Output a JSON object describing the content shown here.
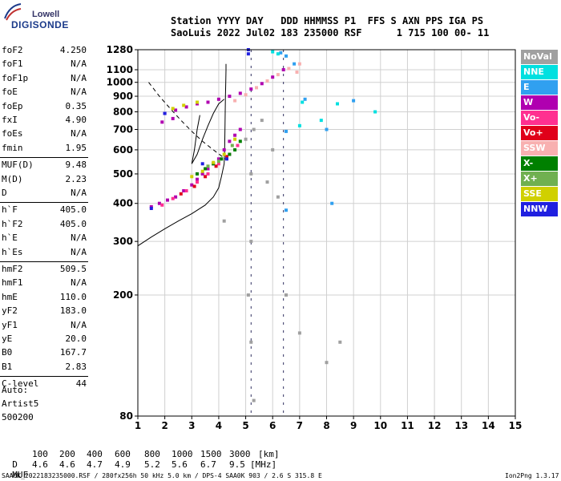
{
  "logo": {
    "top": "Lowell",
    "bottom": "DIGISONDE"
  },
  "header": {
    "line1": "Station YYYY DAY   DDD HHMMSS P1  FFS S AXN PPS IGA PS",
    "line2": "SaoLuis 2022 Jul02 183 235000 RSF      1 715 100 00- 11"
  },
  "params": [
    {
      "label": "foF2",
      "value": "4.250"
    },
    {
      "label": "foF1",
      "value": "N/A"
    },
    {
      "label": "foF1p",
      "value": "N/A"
    },
    {
      "label": "foE",
      "value": "N/A"
    },
    {
      "label": "foEp",
      "value": "0.35"
    },
    {
      "label": "fxI",
      "value": "4.90"
    },
    {
      "label": "foEs",
      "value": "N/A"
    },
    {
      "label": "fmin",
      "value": "1.95"
    },
    {
      "label": "MUF(D)",
      "value": "9.48"
    },
    {
      "label": "M(D)",
      "value": "2.23"
    },
    {
      "label": "D",
      "value": "N/A"
    },
    {
      "label": "h`F",
      "value": "405.0"
    },
    {
      "label": "h`F2",
      "value": "405.0"
    },
    {
      "label": "h`E",
      "value": "N/A"
    },
    {
      "label": "h`Es",
      "value": "N/A"
    },
    {
      "label": "hmF2",
      "value": "509.5"
    },
    {
      "label": "hmF1",
      "value": "N/A"
    },
    {
      "label": "hmE",
      "value": "110.0"
    },
    {
      "label": "yF2",
      "value": "183.0"
    },
    {
      "label": "yF1",
      "value": "N/A"
    },
    {
      "label": "yE",
      "value": "20.0"
    },
    {
      "label": "B0",
      "value": "167.7"
    },
    {
      "label": "B1",
      "value": "2.83"
    },
    {
      "label": "C-level",
      "value": "44"
    }
  ],
  "auto": {
    "label": "Auto:",
    "artist": "Artist5",
    "version": "500200"
  },
  "legend": [
    {
      "label": "NoVal",
      "color": "#a0a0a0"
    },
    {
      "label": "NNE",
      "color": "#00e0e0"
    },
    {
      "label": "E",
      "color": "#30a0f0"
    },
    {
      "label": "W",
      "color": "#b000b0"
    },
    {
      "label": "Vo-",
      "color": "#ff3090"
    },
    {
      "label": "Vo+",
      "color": "#e0001a"
    },
    {
      "label": "SSW",
      "color": "#f8b0b0"
    },
    {
      "label": "X-",
      "color": "#008000"
    },
    {
      "label": "X+",
      "color": "#70b050"
    },
    {
      "label": "SSE",
      "color": "#d0d000"
    },
    {
      "label": "NNW",
      "color": "#2020e0"
    }
  ],
  "muf_table": {
    "d_label": "D",
    "d_values": [
      "100",
      "200",
      "400",
      "600",
      "800",
      "1000",
      "1500",
      "3000"
    ],
    "d_unit": "[km]",
    "muf_label": "MUF",
    "muf_values": [
      "4.6",
      "4.6",
      "4.7",
      "4.9",
      "5.2",
      "5.6",
      "6.7",
      "9.5"
    ],
    "muf_unit": "[MHz]"
  },
  "footer": {
    "left": "SAA0K_2022183235000.RSF / 280fx256h 50 kHz 5.0 km / DPS-4 SAA0K 903 / 2.6 S 315.8 E",
    "right": "Ion2Png 1.3.17"
  },
  "chart_data": {
    "type": "scatter",
    "title": "",
    "xlabel": "",
    "ylabel": "",
    "xlim": [
      1,
      15
    ],
    "ylim": [
      80,
      1280
    ],
    "x_ticks": [
      1,
      2,
      3,
      4,
      5,
      6,
      7,
      8,
      9,
      10,
      11,
      12,
      13,
      14,
      15
    ],
    "y_ticks": [
      80,
      200,
      300,
      400,
      500,
      600,
      700,
      800,
      900,
      1000,
      1100,
      1280
    ],
    "grid": true,
    "legend_position": "right",
    "marked_frequencies": [
      5.2,
      6.4
    ],
    "series": [
      {
        "color": "#b000b0",
        "points": [
          [
            1.5,
            390
          ],
          [
            1.8,
            400
          ],
          [
            2.1,
            410
          ],
          [
            2.4,
            420
          ],
          [
            2.7,
            440
          ],
          [
            3.0,
            460
          ],
          [
            3.2,
            480
          ],
          [
            3.4,
            500
          ],
          [
            3.6,
            520
          ],
          [
            3.8,
            540
          ],
          [
            4.0,
            560
          ],
          [
            4.2,
            600
          ],
          [
            4.4,
            640
          ],
          [
            4.6,
            670
          ],
          [
            4.8,
            700
          ],
          [
            2.0,
            790
          ],
          [
            2.4,
            810
          ],
          [
            2.8,
            830
          ],
          [
            3.2,
            850
          ],
          [
            3.6,
            860
          ],
          [
            4.0,
            880
          ],
          [
            4.4,
            900
          ],
          [
            4.8,
            920
          ],
          [
            5.2,
            950
          ],
          [
            5.6,
            990
          ],
          [
            6.0,
            1040
          ],
          [
            6.4,
            1100
          ],
          [
            1.9,
            740
          ],
          [
            2.3,
            760
          ]
        ]
      },
      {
        "color": "#ff3090",
        "points": [
          [
            1.9,
            395
          ],
          [
            2.3,
            415
          ],
          [
            2.8,
            440
          ],
          [
            3.2,
            470
          ],
          [
            3.6,
            500
          ],
          [
            4.0,
            540
          ],
          [
            4.4,
            580
          ],
          [
            4.7,
            620
          ]
        ]
      },
      {
        "color": "#e0001a",
        "points": [
          [
            2.6,
            430
          ],
          [
            3.1,
            455
          ],
          [
            3.5,
            490
          ],
          [
            3.9,
            530
          ],
          [
            4.3,
            570
          ]
        ]
      },
      {
        "color": "#f8b0b0",
        "points": [
          [
            4.6,
            870
          ],
          [
            5.0,
            910
          ],
          [
            5.4,
            960
          ],
          [
            5.8,
            1010
          ],
          [
            6.2,
            1060
          ],
          [
            6.6,
            1110
          ],
          [
            7.0,
            1150
          ],
          [
            6.9,
            1080
          ]
        ]
      },
      {
        "color": "#008000",
        "points": [
          [
            3.2,
            500
          ],
          [
            3.5,
            520
          ],
          [
            3.8,
            540
          ],
          [
            4.1,
            560
          ],
          [
            4.4,
            580
          ],
          [
            4.6,
            600
          ],
          [
            4.8,
            640
          ]
        ]
      },
      {
        "color": "#70b050",
        "points": [
          [
            3.6,
            530
          ],
          [
            4.0,
            550
          ],
          [
            4.5,
            620
          ]
        ]
      },
      {
        "color": "#d0d000",
        "points": [
          [
            3.0,
            490
          ],
          [
            3.4,
            510
          ],
          [
            3.8,
            545
          ],
          [
            4.2,
            580
          ],
          [
            4.6,
            650
          ],
          [
            2.3,
            820
          ],
          [
            2.7,
            840
          ],
          [
            3.2,
            860
          ]
        ]
      },
      {
        "color": "#2020e0",
        "points": [
          [
            1.5,
            385
          ],
          [
            2.0,
            790
          ],
          [
            3.4,
            540
          ],
          [
            4.3,
            560
          ],
          [
            5.1,
            1280
          ],
          [
            5.1,
            1240
          ]
        ]
      },
      {
        "color": "#30a0f0",
        "points": [
          [
            6.3,
            1250
          ],
          [
            6.5,
            1220
          ],
          [
            6.8,
            1150
          ],
          [
            6.5,
            690
          ],
          [
            6.5,
            380
          ],
          [
            7.2,
            880
          ],
          [
            8.0,
            700
          ],
          [
            9.0,
            870
          ],
          [
            8.2,
            400
          ]
        ]
      },
      {
        "color": "#00e0e0",
        "points": [
          [
            6.0,
            1260
          ],
          [
            6.2,
            1240
          ],
          [
            7.1,
            860
          ],
          [
            8.4,
            850
          ],
          [
            9.8,
            800
          ],
          [
            7.8,
            750
          ],
          [
            7.0,
            720
          ]
        ]
      },
      {
        "color": "#a0a0a0",
        "points": [
          [
            5.0,
            650
          ],
          [
            5.3,
            700
          ],
          [
            5.6,
            750
          ],
          [
            6.0,
            600
          ],
          [
            5.2,
            500
          ],
          [
            5.8,
            470
          ],
          [
            6.2,
            420
          ],
          [
            5.2,
            300
          ],
          [
            5.1,
            200
          ],
          [
            5.2,
            140
          ],
          [
            5.3,
            90
          ],
          [
            4.2,
            350
          ],
          [
            6.5,
            200
          ],
          [
            7.0,
            150
          ],
          [
            8.0,
            120
          ],
          [
            8.5,
            140
          ]
        ]
      }
    ],
    "curves": [
      {
        "style": "solid",
        "points": [
          [
            1.0,
            290
          ],
          [
            1.5,
            310
          ],
          [
            2.0,
            330
          ],
          [
            2.5,
            350
          ],
          [
            3.0,
            370
          ],
          [
            3.5,
            395
          ],
          [
            3.8,
            420
          ],
          [
            4.0,
            450
          ],
          [
            4.1,
            490
          ],
          [
            4.2,
            540
          ],
          [
            4.22,
            600
          ],
          [
            4.23,
            700
          ],
          [
            4.24,
            800
          ],
          [
            4.25,
            900
          ],
          [
            4.26,
            1000
          ],
          [
            4.27,
            1100
          ],
          [
            4.27,
            1150
          ]
        ]
      },
      {
        "style": "solid",
        "points": [
          [
            3.0,
            540
          ],
          [
            3.2,
            580
          ],
          [
            3.4,
            650
          ],
          [
            3.6,
            720
          ],
          [
            3.8,
            790
          ],
          [
            4.0,
            850
          ],
          [
            4.2,
            880
          ]
        ]
      },
      {
        "style": "solid",
        "points": [
          [
            3.0,
            540
          ],
          [
            3.1,
            600
          ],
          [
            3.2,
            700
          ],
          [
            3.3,
            780
          ]
        ]
      },
      {
        "style": "dashed",
        "points": [
          [
            1.4,
            1000
          ],
          [
            1.8,
            900
          ],
          [
            2.2,
            820
          ],
          [
            2.6,
            750
          ],
          [
            3.0,
            690
          ],
          [
            3.4,
            640
          ],
          [
            3.8,
            600
          ],
          [
            4.25,
            560
          ]
        ]
      }
    ]
  }
}
